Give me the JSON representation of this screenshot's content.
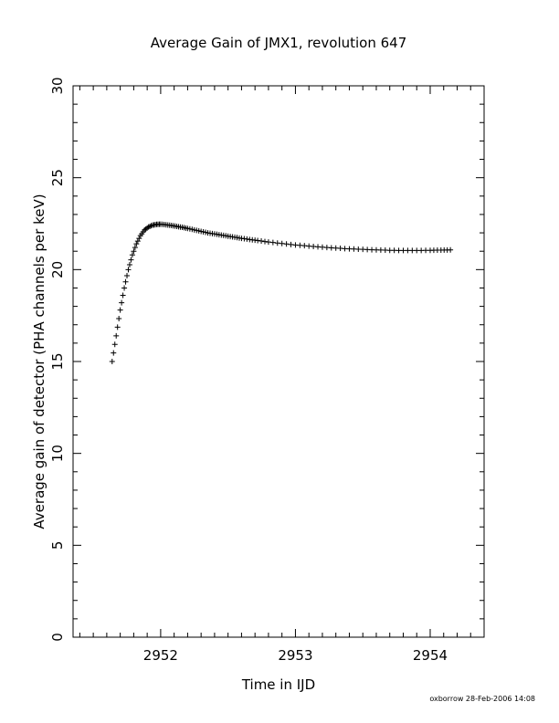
{
  "chart_data": {
    "type": "scatter",
    "title": "Average Gain of JMX1, revolution 647",
    "xlabel": "Time in IJD",
    "ylabel": "Average gain of detector (PHA channels per keV)",
    "xlim": [
      2951.35,
      2954.4
    ],
    "ylim": [
      0,
      30
    ],
    "x_ticks": [
      2952,
      2953,
      2954
    ],
    "x_tick_labels": [
      "2952",
      "2953",
      "2954"
    ],
    "y_ticks": [
      0,
      5,
      10,
      15,
      20,
      25,
      30
    ],
    "y_tick_labels": [
      "0",
      "5",
      "10",
      "15",
      "20",
      "25",
      "30"
    ],
    "x_minor_step": 0.1,
    "y_minor_step": 1,
    "marker": "plus",
    "grid": false,
    "series": [
      {
        "x": [
          2951.64,
          2951.67,
          2951.7,
          2951.73,
          2951.76,
          2951.79,
          2951.82,
          2951.85,
          2951.88,
          2951.91,
          2951.94,
          2951.97,
          2952.0,
          2952.04,
          2952.08,
          2952.12,
          2952.16,
          2952.2,
          2952.25,
          2952.3,
          2952.35,
          2952.4,
          2952.45,
          2952.5,
          2952.55,
          2952.6,
          2952.66,
          2952.72,
          2952.8,
          2952.9,
          2953.0,
          2953.1,
          2953.2,
          2953.3,
          2953.4,
          2953.5,
          2953.6,
          2953.7,
          2953.8,
          2953.9,
          2954.0,
          2954.08,
          2954.15
        ],
        "y": [
          15.0,
          16.4,
          17.8,
          19.0,
          20.0,
          20.8,
          21.4,
          21.85,
          22.15,
          22.32,
          22.42,
          22.46,
          22.47,
          22.44,
          22.4,
          22.35,
          22.3,
          22.24,
          22.16,
          22.08,
          22.0,
          21.94,
          21.88,
          21.82,
          21.76,
          21.7,
          21.64,
          21.58,
          21.5,
          21.42,
          21.34,
          21.28,
          21.22,
          21.17,
          21.13,
          21.1,
          21.07,
          21.05,
          21.04,
          21.04,
          21.05,
          21.06,
          21.07
        ]
      }
    ]
  },
  "footer": {
    "credit": "oxborrow 28-Feb-2006 14:08"
  }
}
